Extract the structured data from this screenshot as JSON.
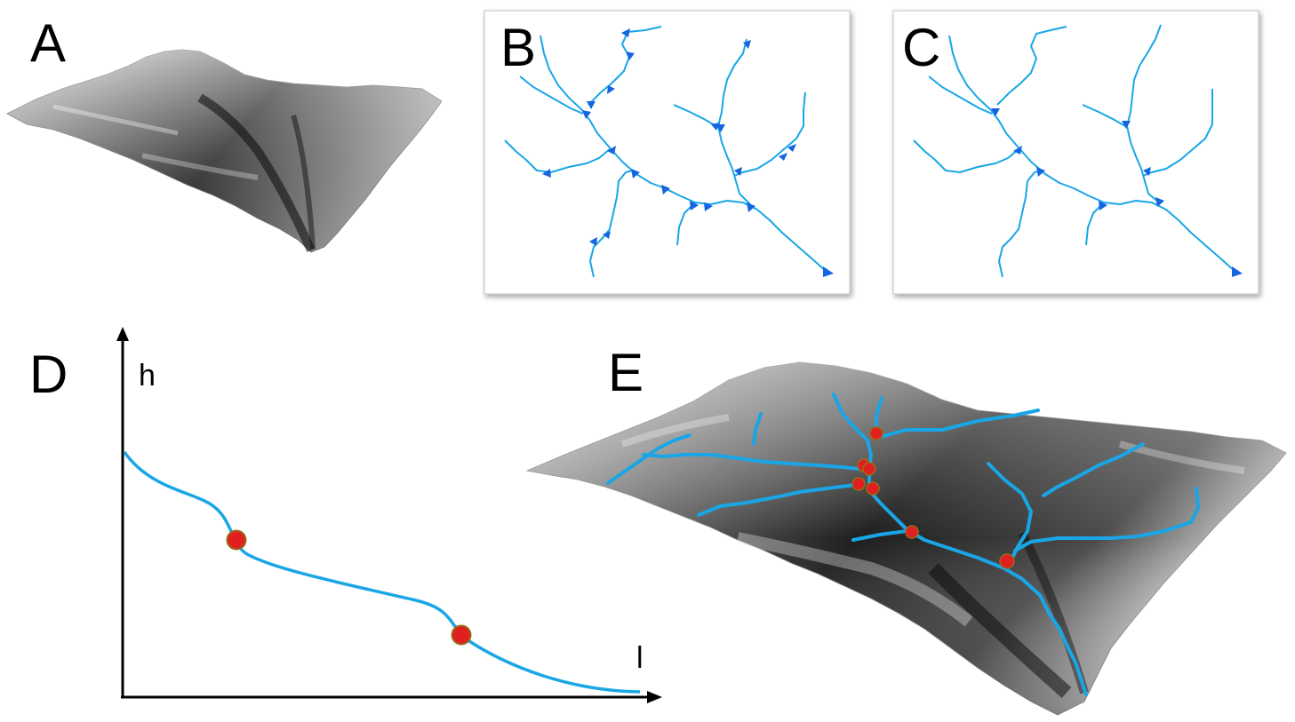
{
  "panels": {
    "a": {
      "letter": "A"
    },
    "b": {
      "letter": "B"
    },
    "c": {
      "letter": "C"
    },
    "d": {
      "letter": "D",
      "y_axis_label": "h",
      "x_axis_label": "l"
    },
    "e": {
      "letter": "E"
    }
  },
  "colors": {
    "river": "#1aa6e6",
    "arrow": "#1565e0",
    "marker": "#e11f1f",
    "marker_edge": "#9a6a1a",
    "terrain_dark": "#111111",
    "terrain_light": "#f5f5f5"
  }
}
